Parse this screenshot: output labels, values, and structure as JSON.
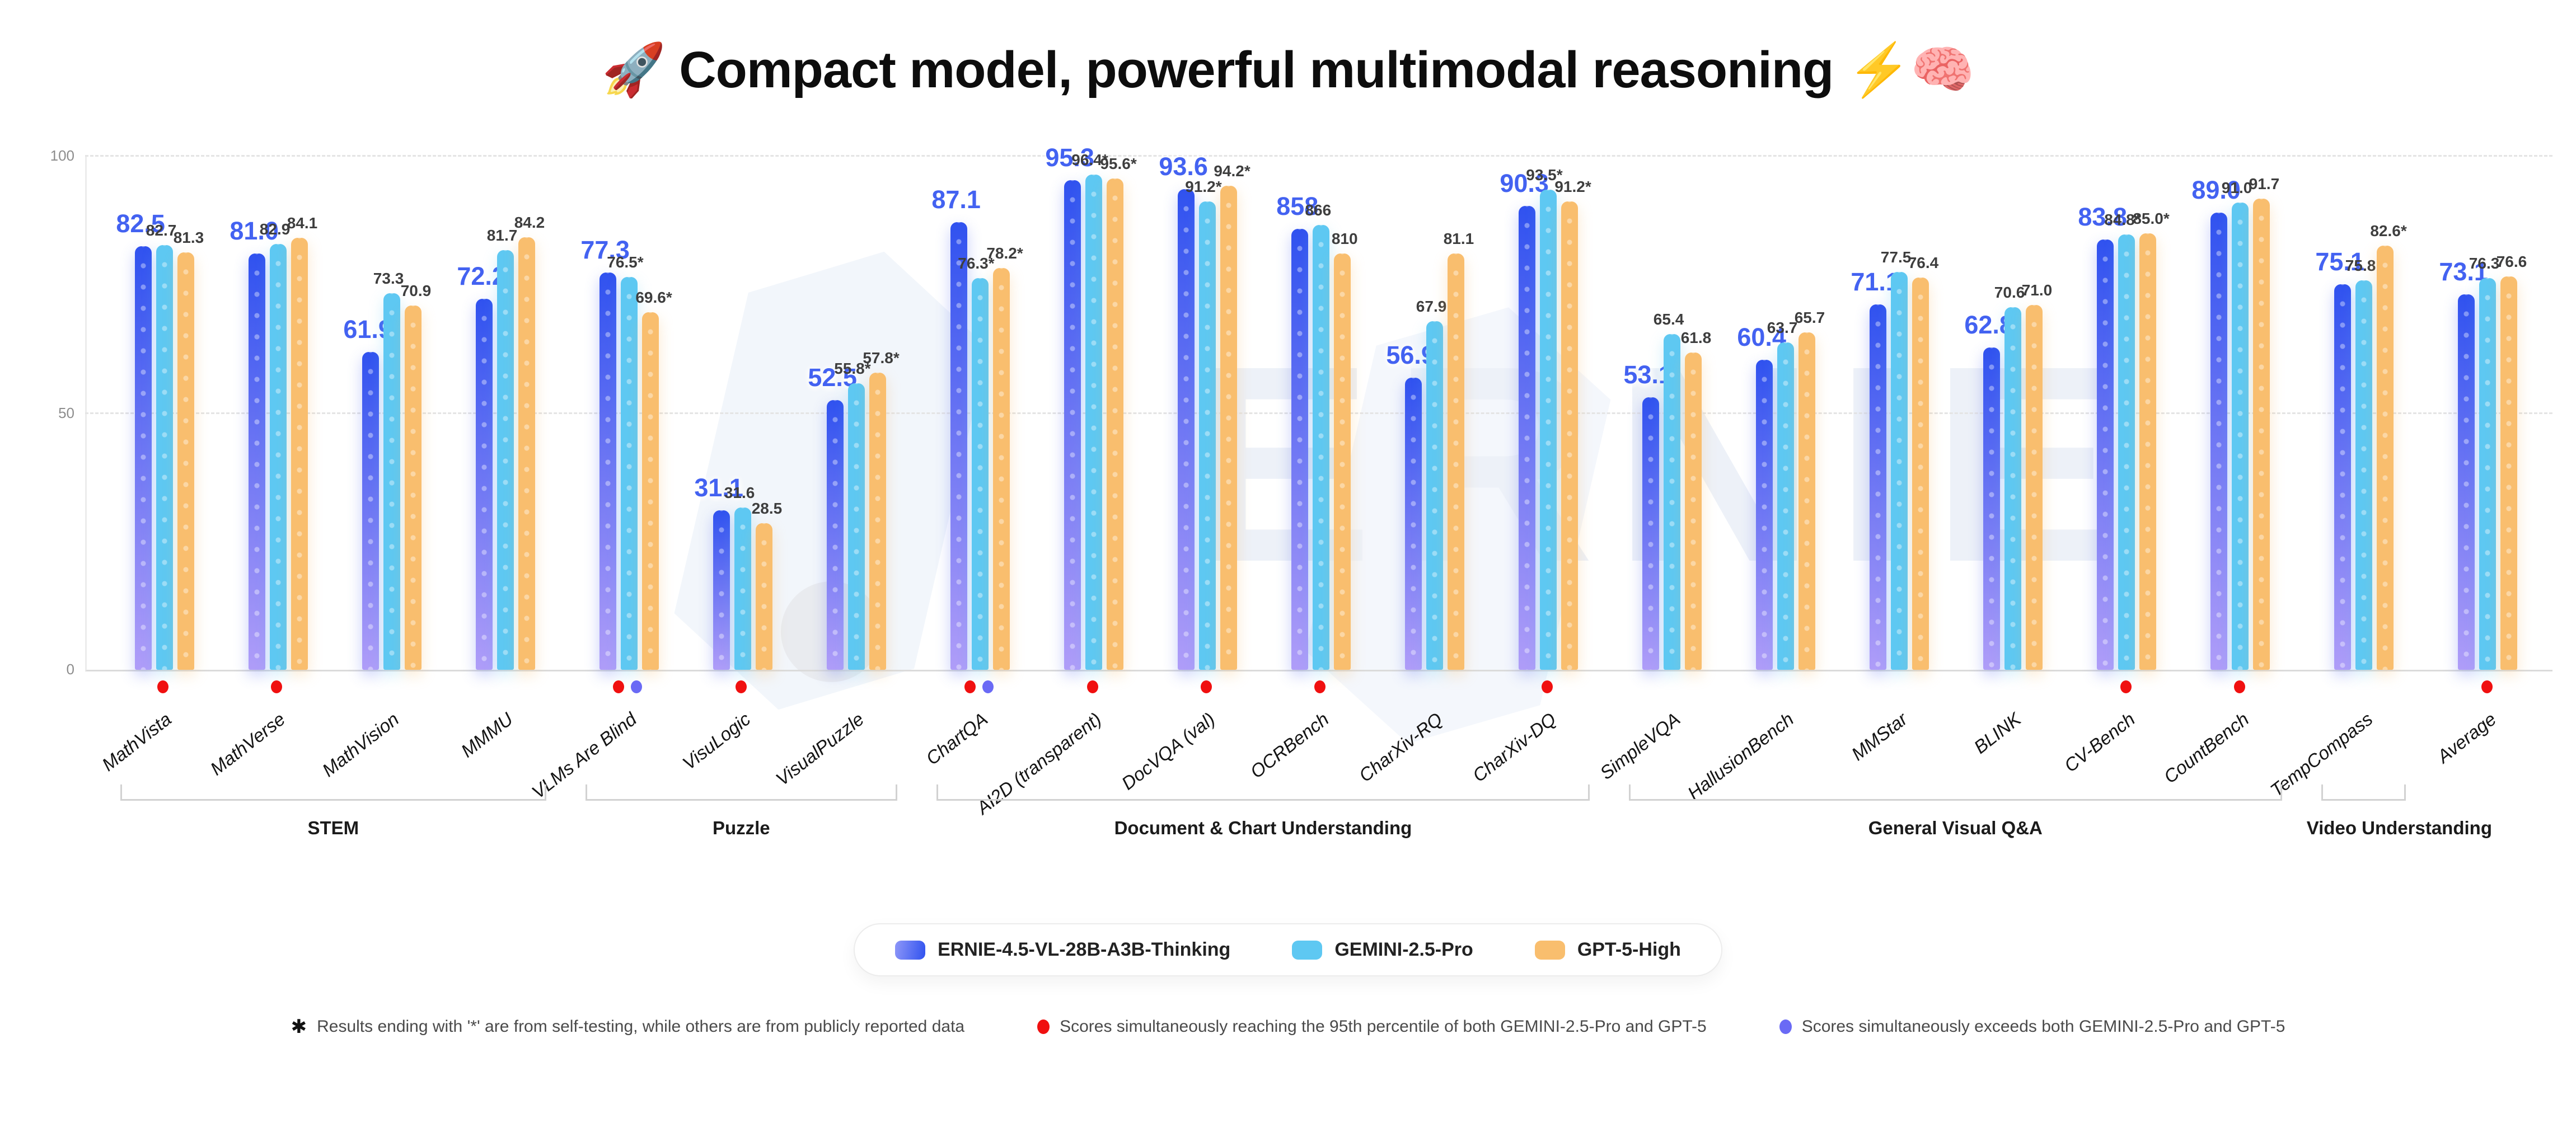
{
  "title": {
    "emoji_left": "🚀",
    "text": "Compact model, powerful multimodal reasoning",
    "emoji_right": "⚡🧠"
  },
  "watermark_text": "ERNIE",
  "y_axis": {
    "ticks": [
      "100",
      "50",
      "0"
    ],
    "gridlines_dashed": [
      100,
      50
    ]
  },
  "colors": {
    "ernie_top": "#3052EF",
    "ernie_bottom": "#AF9DF8",
    "gemini": "#5EC8F2",
    "gpt": "#F9BE6E",
    "ernie_label": "#4362F1",
    "other_label": "#3E3E3E",
    "dot_red": "#F01010",
    "dot_blue": "#6A6AF5"
  },
  "legend": {
    "items": [
      {
        "label": "ERNIE-4.5-VL-28B-A3B-Thinking",
        "swatch": "ernie-gradient"
      },
      {
        "label": "GEMINI-2.5-Pro",
        "swatch": "gemini-solid"
      },
      {
        "label": "GPT-5-High",
        "swatch": "gpt-solid"
      }
    ]
  },
  "footnotes": [
    {
      "marker": "✱",
      "marker_type": "asterisk",
      "text": "Results ending with '*' are from self-testing, while others are from publicly reported data"
    },
    {
      "marker": "●",
      "marker_type": "red-dot",
      "text": "Scores simultaneously reaching the 95th percentile of both GEMINI-2.5-Pro and GPT-5"
    },
    {
      "marker": "●",
      "marker_type": "blue-dot",
      "text": "Scores simultaneously exceeds both GEMINI-2.5-Pro and GPT-5"
    }
  ],
  "chart_data": {
    "type": "bar",
    "title": "Compact model, powerful multimodal reasoning",
    "ylim": [
      0,
      100
    ],
    "grid": "dashed horizontal at 50 and 100",
    "legend_position": "bottom-center",
    "series_names": [
      "ERNIE-4.5-VL-28B-A3B-Thinking",
      "GEMINI-2.5-Pro",
      "GPT-5-High"
    ],
    "note": "OCRBench values are on a 0-1000 scale; bar heights use value/10",
    "groups": [
      {
        "label": "STEM",
        "bracket": true,
        "benchmarks": [
          {
            "name": "MathVista",
            "values": [
              "82.5",
              "82.7",
              "81.3"
            ],
            "heights": [
              82.5,
              82.7,
              81.3
            ],
            "dots": [
              "red"
            ]
          },
          {
            "name": "MathVerse",
            "values": [
              "81.0",
              "82.9",
              "84.1"
            ],
            "heights": [
              81.0,
              82.9,
              84.1
            ],
            "dots": [
              "red"
            ]
          },
          {
            "name": "MathVision",
            "values": [
              "61.9",
              "73.3",
              "70.9"
            ],
            "heights": [
              61.9,
              73.3,
              70.9
            ],
            "dots": []
          },
          {
            "name": "MMMU",
            "values": [
              "72.2",
              "81.7",
              "84.2"
            ],
            "heights": [
              72.2,
              81.7,
              84.2
            ],
            "dots": []
          }
        ]
      },
      {
        "label": "Puzzle",
        "bracket": true,
        "benchmarks": [
          {
            "name": "VLMs Are Blind",
            "values": [
              "77.3",
              "76.5*",
              "69.6*"
            ],
            "heights": [
              77.3,
              76.5,
              69.6
            ],
            "dots": [
              "red",
              "blue"
            ]
          },
          {
            "name": "VisuLogic",
            "values": [
              "31.1",
              "31.6",
              "28.5"
            ],
            "heights": [
              31.1,
              31.6,
              28.5
            ],
            "dots": [
              "red"
            ]
          },
          {
            "name": "VisualPuzzle",
            "values": [
              "52.5",
              "55.8*",
              "57.8*"
            ],
            "heights": [
              52.5,
              55.8,
              57.8
            ],
            "dots": []
          }
        ]
      },
      {
        "label": "Document & Chart Understanding",
        "bracket": true,
        "benchmarks": [
          {
            "name": "ChartQA",
            "values": [
              "87.1",
              "76.3*",
              "78.2*"
            ],
            "heights": [
              87.1,
              76.3,
              78.2
            ],
            "dots": [
              "red",
              "blue"
            ]
          },
          {
            "name": "AI2D (transparent)",
            "values": [
              "95.3",
              "96.4*",
              "95.6*"
            ],
            "heights": [
              95.3,
              96.4,
              95.6
            ],
            "dots": [
              "red"
            ]
          },
          {
            "name": "DocVQA (val)",
            "values": [
              "93.6",
              "91.2*",
              "94.2*"
            ],
            "heights": [
              93.6,
              91.2,
              94.2
            ],
            "dots": [
              "red"
            ]
          },
          {
            "name": "OCRBench",
            "values": [
              "858",
              "866",
              "810"
            ],
            "heights": [
              85.8,
              86.6,
              81.0
            ],
            "dots": [
              "red"
            ]
          },
          {
            "name": "CharXiv-RQ",
            "values": [
              "56.9",
              "67.9",
              "81.1"
            ],
            "heights": [
              56.9,
              67.9,
              81.1
            ],
            "dots": []
          },
          {
            "name": "CharXiv-DQ",
            "values": [
              "90.3",
              "93.5*",
              "91.2*"
            ],
            "heights": [
              90.3,
              93.5,
              91.2
            ],
            "dots": [
              "red"
            ]
          }
        ]
      },
      {
        "label": "General Visual Q&A",
        "bracket": true,
        "benchmarks": [
          {
            "name": "SimpleVQA",
            "values": [
              "53.1",
              "65.4",
              "61.8"
            ],
            "heights": [
              53.1,
              65.4,
              61.8
            ],
            "dots": []
          },
          {
            "name": "HallusionBench",
            "values": [
              "60.4",
              "63.7",
              "65.7"
            ],
            "heights": [
              60.4,
              63.7,
              65.7
            ],
            "dots": []
          },
          {
            "name": "MMStar",
            "values": [
              "71.1",
              "77.5",
              "76.4"
            ],
            "heights": [
              71.1,
              77.5,
              76.4
            ],
            "dots": []
          },
          {
            "name": "BLINK",
            "values": [
              "62.8",
              "70.6",
              "71.0"
            ],
            "heights": [
              62.8,
              70.6,
              71.0
            ],
            "dots": []
          },
          {
            "name": "CV-Bench",
            "values": [
              "83.8",
              "84.8*",
              "85.0*"
            ],
            "heights": [
              83.8,
              84.8,
              85.0
            ],
            "dots": [
              "red"
            ]
          },
          {
            "name": "CountBench",
            "values": [
              "89.0",
              "91.0",
              "91.7"
            ],
            "heights": [
              89.0,
              91.0,
              91.7
            ],
            "dots": [
              "red"
            ]
          }
        ]
      },
      {
        "label": "Video Understanding",
        "bracket": true,
        "benchmarks": [
          {
            "name": "TempCompass",
            "values": [
              "75.1",
              "75.8",
              "82.6*"
            ],
            "heights": [
              75.1,
              75.8,
              82.6
            ],
            "dots": []
          }
        ]
      },
      {
        "label": null,
        "bracket": false,
        "benchmarks": [
          {
            "name": "Average",
            "values": [
              "73.1",
              "76.3",
              "76.6"
            ],
            "heights": [
              73.1,
              76.3,
              76.6
            ],
            "dots": [
              "red"
            ]
          }
        ]
      }
    ]
  }
}
